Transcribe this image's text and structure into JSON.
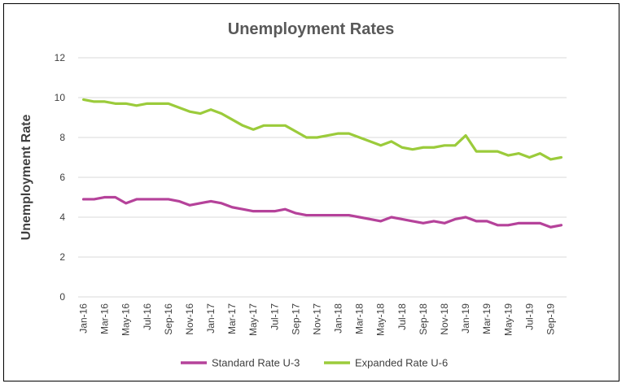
{
  "chart_data": {
    "type": "line",
    "title": "Unemployment Rates",
    "xlabel": "",
    "ylabel": "Unemployment Rate",
    "ylim": [
      0,
      12
    ],
    "yticks": [
      0,
      2,
      4,
      6,
      8,
      10,
      12
    ],
    "grid": "horizontal",
    "legend_position": "bottom",
    "x": [
      "Jan-16",
      "Feb-16",
      "Mar-16",
      "Apr-16",
      "May-16",
      "Jun-16",
      "Jul-16",
      "Aug-16",
      "Sep-16",
      "Oct-16",
      "Nov-16",
      "Dec-16",
      "Jan-17",
      "Feb-17",
      "Mar-17",
      "Apr-17",
      "May-17",
      "Jun-17",
      "Jul-17",
      "Aug-17",
      "Sep-17",
      "Oct-17",
      "Nov-17",
      "Dec-17",
      "Jan-18",
      "Feb-18",
      "Mar-18",
      "Apr-18",
      "May-18",
      "Jun-18",
      "Jul-18",
      "Aug-18",
      "Sep-18",
      "Oct-18",
      "Nov-18",
      "Dec-18",
      "Jan-19",
      "Feb-19",
      "Mar-19",
      "Apr-19",
      "May-19",
      "Jun-19",
      "Jul-19",
      "Aug-19",
      "Sep-19",
      "Oct-19"
    ],
    "x_tick_labels": [
      "Jan-16",
      "Mar-16",
      "May-16",
      "Jul-16",
      "Sep-16",
      "Nov-16",
      "Jan-17",
      "Mar-17",
      "May-17",
      "Jul-17",
      "Sep-17",
      "Nov-17",
      "Jan-18",
      "Mar-18",
      "May-18",
      "Jul-18",
      "Sep-18",
      "Nov-18",
      "Jan-19",
      "Mar-19",
      "May-19",
      "Jul-19",
      "Sep-19"
    ],
    "series": [
      {
        "name": "Standard Rate U-3",
        "color": "#B5429A",
        "values": [
          4.9,
          4.9,
          5.0,
          5.0,
          4.7,
          4.9,
          4.9,
          4.9,
          4.9,
          4.8,
          4.6,
          4.7,
          4.8,
          4.7,
          4.5,
          4.4,
          4.3,
          4.3,
          4.3,
          4.4,
          4.2,
          4.1,
          4.1,
          4.1,
          4.1,
          4.1,
          4.0,
          3.9,
          3.8,
          4.0,
          3.9,
          3.8,
          3.7,
          3.8,
          3.7,
          3.9,
          4.0,
          3.8,
          3.8,
          3.6,
          3.6,
          3.7,
          3.7,
          3.7,
          3.5,
          3.6
        ]
      },
      {
        "name": "Expanded Rate U-6",
        "color": "#9BCB3B",
        "values": [
          9.9,
          9.8,
          9.8,
          9.7,
          9.7,
          9.6,
          9.7,
          9.7,
          9.7,
          9.5,
          9.3,
          9.2,
          9.4,
          9.2,
          8.9,
          8.6,
          8.4,
          8.6,
          8.6,
          8.6,
          8.3,
          8.0,
          8.0,
          8.1,
          8.2,
          8.2,
          8.0,
          7.8,
          7.6,
          7.8,
          7.5,
          7.4,
          7.5,
          7.5,
          7.6,
          7.6,
          8.1,
          7.3,
          7.3,
          7.3,
          7.1,
          7.2,
          7.0,
          7.2,
          6.9,
          7.0
        ]
      }
    ]
  }
}
